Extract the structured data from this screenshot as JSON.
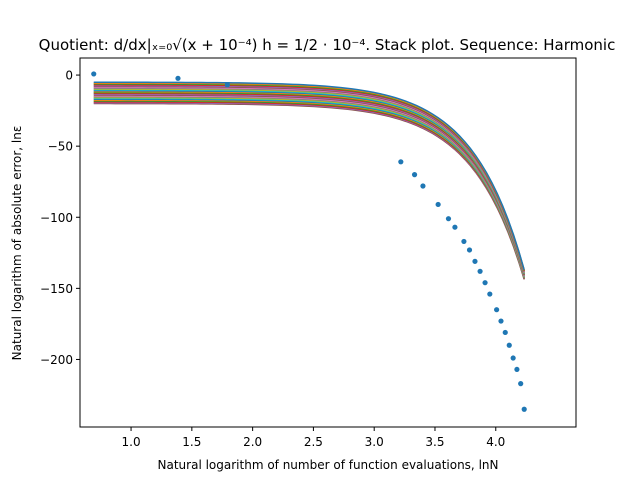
{
  "chart_data": {
    "type": "line",
    "title": "Quotient: d/dx|ₓ₌₀√(x + 10⁻⁴)  h = 1/2 · 10⁻⁴. Stack plot. Sequence: Harmonic",
    "xlabel": "Natural logarithm of number of function evaluations, lnN",
    "ylabel": "Natural logarithm of absolute error, lnε",
    "xlim": [
      0.58,
      4.66
    ],
    "ylim": [
      -247.5,
      12.0
    ],
    "xticks": [
      1.0,
      1.5,
      2.0,
      2.5,
      3.0,
      3.5,
      4.0
    ],
    "xtick_labels": [
      "1.0",
      "1.5",
      "2.0",
      "2.5",
      "3.0",
      "3.5",
      "4.0"
    ],
    "yticks": [
      0,
      -50,
      -100,
      -150,
      -200
    ],
    "ytick_labels": [
      "0",
      "−50",
      "−100",
      "−150",
      "−200"
    ],
    "grid": false,
    "legend": "none",
    "points": {
      "x": [
        0.693,
        1.386,
        1.792,
        3.219,
        3.332,
        3.401,
        3.526,
        3.611,
        3.664,
        3.738,
        3.784,
        3.829,
        3.871,
        3.912,
        3.951,
        4.007,
        4.043,
        4.078,
        4.111,
        4.143,
        4.174,
        4.205,
        4.234
      ],
      "y": [
        0.8,
        -2.3,
        -6.9,
        -61,
        -70,
        -78,
        -91,
        -101,
        -107,
        -117,
        -123,
        -131,
        -138,
        -146,
        -154,
        -165,
        -173,
        -181,
        -190,
        -199,
        -207,
        -217,
        -235
      ],
      "color": "#1f77b4"
    },
    "curve_model": {
      "form": "y = a - b*exp(c*x)",
      "a": [
        -5.0,
        -5.6,
        -6.2,
        -6.8,
        -7.4,
        -8.0,
        -8.6,
        -9.2,
        -9.8,
        -10.4,
        -11.0,
        -11.6,
        -12.2,
        -12.8,
        -13.4,
        -14.0,
        -14.6,
        -15.2,
        -15.8,
        -16.4,
        -17.0,
        -17.6,
        -18.2,
        -18.8,
        -19.4,
        -20.0
      ],
      "b": 0.0063,
      "c": 2.35,
      "x_start": 0.693,
      "x_end": 4.234
    },
    "series_colors": [
      "#1f77b4",
      "#ff7f0e",
      "#2ca02c",
      "#d62728",
      "#9467bd",
      "#8c564b",
      "#e377c2",
      "#7f7f7f",
      "#bcbd22",
      "#17becf"
    ]
  }
}
